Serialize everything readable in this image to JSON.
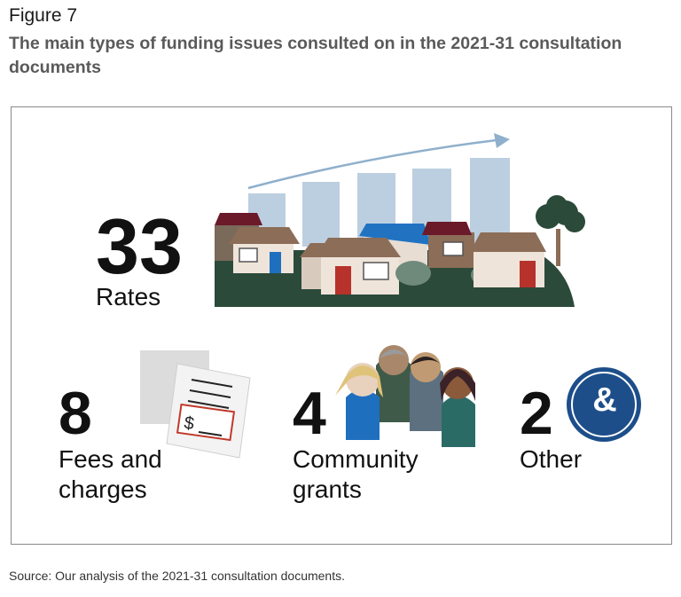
{
  "figure_label": "Figure 7",
  "title": "The main types of funding issues consulted on in the 2021-31 consultation documents",
  "source": "Source: Our analysis of the 2021-31 consultation documents.",
  "chart_data": {
    "type": "table",
    "title": "The main types of funding issues consulted on in the 2021-31 consultation documents",
    "categories": [
      "Rates",
      "Fees and charges",
      "Community grants",
      "Other"
    ],
    "values": [
      33,
      8,
      4,
      2
    ],
    "items": [
      {
        "value": "33",
        "label": "Rates",
        "icon": "houses-rising-bars-illustration"
      },
      {
        "value": "8",
        "label_line1": "Fees and",
        "label_line2": "charges",
        "icon": "invoice-documents-icon"
      },
      {
        "value": "4",
        "label_line1": "Community",
        "label_line2": "grants",
        "icon": "community-people-icon"
      },
      {
        "value": "2",
        "label": "Other",
        "icon": "ampersand-icon",
        "icon_text": "&"
      }
    ]
  },
  "colors": {
    "bars": "#bccfe0",
    "ground": "#2b4a3a",
    "ampersand_circle": "#1d4e8a",
    "invoice_accent": "#c0392b"
  }
}
